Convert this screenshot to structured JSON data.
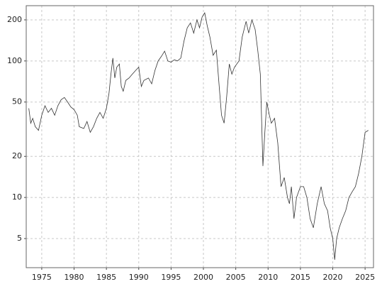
{
  "chart_data": {
    "type": "line",
    "log_y": true,
    "grid": true,
    "x": [
      1973.0,
      1973.3,
      1973.6,
      1974.0,
      1974.5,
      1975.0,
      1975.5,
      1976.0,
      1976.5,
      1977.0,
      1977.5,
      1978.0,
      1978.5,
      1979.0,
      1979.5,
      1980.0,
      1980.5,
      1980.8,
      1981.5,
      1982.0,
      1982.5,
      1983.0,
      1983.5,
      1984.0,
      1984.5,
      1985.0,
      1985.4,
      1985.7,
      1986.0,
      1986.3,
      1986.6,
      1987.0,
      1987.3,
      1987.6,
      1988.0,
      1988.5,
      1989.0,
      1989.5,
      1990.0,
      1990.4,
      1990.8,
      1991.5,
      1992.0,
      1992.5,
      1993.0,
      1993.5,
      1994.0,
      1994.5,
      1995.0,
      1995.5,
      1996.0,
      1996.5,
      1997.0,
      1997.5,
      1998.0,
      1998.5,
      1999.0,
      1999.4,
      1999.8,
      2000.2,
      2000.6,
      2001.0,
      2001.5,
      2002.0,
      2002.5,
      2002.8,
      2003.2,
      2003.6,
      2004.0,
      2004.4,
      2004.8,
      2005.5,
      2006.0,
      2006.6,
      2007.0,
      2007.5,
      2008.0,
      2008.4,
      2008.8,
      2009.2,
      2009.5,
      2009.8,
      2010.2,
      2010.5,
      2011.0,
      2011.5,
      2012.0,
      2012.5,
      2013.0,
      2013.3,
      2013.6,
      2014.0,
      2014.4,
      2015.0,
      2015.5,
      2016.0,
      2016.5,
      2017.0,
      2017.6,
      2018.2,
      2018.7,
      2019.2,
      2019.6,
      2020.0,
      2020.3,
      2020.6,
      2021.0,
      2021.5,
      2022.0,
      2022.5,
      2023.0,
      2023.5,
      2024.0,
      2024.5,
      2025.0,
      2025.5
    ],
    "series": [
      {
        "color": "#333333",
        "values": [
          45,
          35,
          38,
          33,
          31,
          40,
          47,
          42,
          45,
          40,
          47,
          52,
          54,
          50,
          46,
          44,
          40,
          33,
          32,
          36,
          30,
          33,
          38,
          42,
          38,
          45,
          58,
          80,
          105,
          75,
          90,
          95,
          65,
          60,
          72,
          75,
          80,
          85,
          90,
          65,
          72,
          75,
          68,
          85,
          100,
          108,
          118,
          100,
          98,
          102,
          100,
          105,
          140,
          175,
          190,
          160,
          200,
          175,
          210,
          225,
          180,
          150,
          110,
          120,
          60,
          40,
          35,
          55,
          95,
          80,
          90,
          100,
          150,
          195,
          160,
          200,
          170,
          120,
          80,
          17,
          30,
          50,
          40,
          35,
          38,
          25,
          12,
          14,
          10,
          9,
          12,
          7,
          10,
          12,
          12,
          10,
          7,
          6,
          9,
          12,
          9,
          8,
          6,
          5,
          3.5,
          5,
          6,
          7,
          8,
          10,
          11,
          12,
          15,
          20,
          30,
          31
        ]
      }
    ],
    "xlim": [
      1972.6,
      2026.3
    ],
    "ylim": [
      3.06,
      254
    ],
    "xticks": [
      1975,
      1980,
      1985,
      1990,
      1995,
      2000,
      2005,
      2010,
      2015,
      2020,
      2025
    ],
    "yticks": [
      5,
      10,
      20,
      50,
      100,
      200
    ]
  }
}
